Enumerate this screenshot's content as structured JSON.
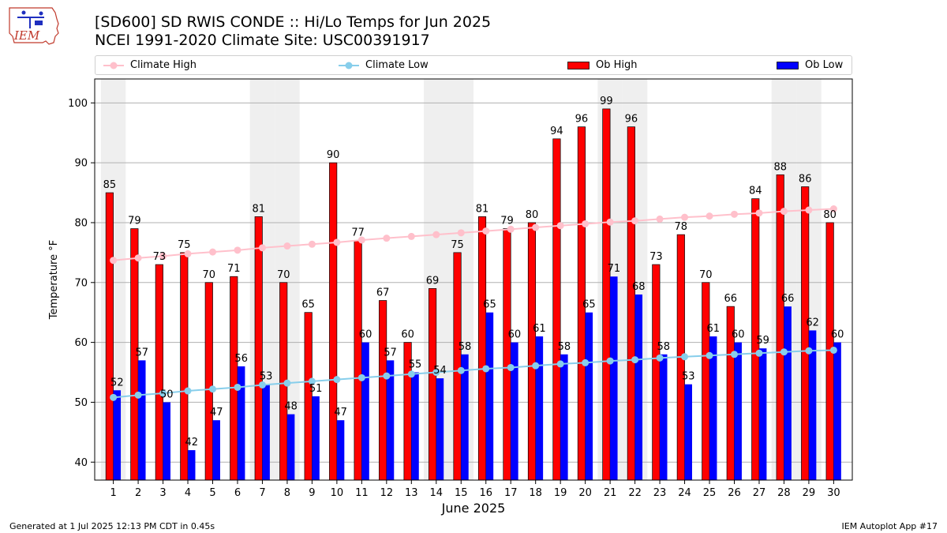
{
  "header": {
    "title_line1": "[SD600] SD RWIS CONDE :: Hi/Lo Temps for Jun 2025",
    "title_line2": "NCEI 1991-2020 Climate Site: USC00391917",
    "logo_text": "IEM"
  },
  "footer": {
    "left": "Generated at 1 Jul 2025 12:13 PM CDT in 0.45s",
    "right": "IEM Autoplot App #17"
  },
  "colors": {
    "ob_high": "#ff0000",
    "ob_low": "#0000ff",
    "climate_high": "#ffc0cb",
    "climate_low": "#87ceeb",
    "weekend_band": "#efefef",
    "grid": "#b0b0b0"
  },
  "chart_data": {
    "type": "bar",
    "xlabel": "June 2025",
    "ylabel": "Temperature °F",
    "ylim": [
      37,
      104
    ],
    "yticks": [
      40,
      50,
      60,
      70,
      80,
      90,
      100
    ],
    "grid": "y",
    "legend_position": "top",
    "categories": [
      "1",
      "2",
      "3",
      "4",
      "5",
      "6",
      "7",
      "8",
      "9",
      "10",
      "11",
      "12",
      "13",
      "14",
      "15",
      "16",
      "17",
      "18",
      "19",
      "20",
      "21",
      "22",
      "23",
      "24",
      "25",
      "26",
      "27",
      "28",
      "29",
      "30"
    ],
    "shaded_days": [
      1,
      7,
      8,
      14,
      15,
      21,
      22,
      28,
      29
    ],
    "series": [
      {
        "name": "Ob High",
        "kind": "bar",
        "values": [
          85,
          79,
          73,
          75,
          70,
          71,
          81,
          70,
          65,
          90,
          77,
          67,
          60,
          69,
          75,
          81,
          79,
          80,
          94,
          96,
          99,
          96,
          73,
          78,
          70,
          66,
          84,
          88,
          86,
          80
        ]
      },
      {
        "name": "Ob Low",
        "kind": "bar",
        "values": [
          52,
          57,
          50,
          42,
          47,
          56,
          53,
          48,
          51,
          47,
          60,
          57,
          55,
          54,
          58,
          65,
          60,
          61,
          58,
          65,
          71,
          68,
          58,
          53,
          61,
          60,
          59,
          66,
          62,
          60
        ]
      },
      {
        "name": "Climate High",
        "kind": "line",
        "values": [
          73.7,
          74.1,
          74.4,
          74.8,
          75.1,
          75.4,
          75.8,
          76.1,
          76.4,
          76.7,
          77.1,
          77.4,
          77.7,
          78.0,
          78.3,
          78.6,
          78.9,
          79.2,
          79.5,
          79.8,
          80.1,
          80.3,
          80.6,
          80.9,
          81.1,
          81.4,
          81.6,
          81.9,
          82.1,
          82.3
        ]
      },
      {
        "name": "Climate Low",
        "kind": "line",
        "values": [
          50.8,
          51.2,
          51.5,
          51.9,
          52.2,
          52.5,
          52.9,
          53.2,
          53.5,
          53.8,
          54.1,
          54.4,
          54.7,
          55.0,
          55.3,
          55.6,
          55.8,
          56.1,
          56.4,
          56.6,
          56.9,
          57.1,
          57.4,
          57.6,
          57.8,
          58.0,
          58.2,
          58.4,
          58.6,
          58.7
        ]
      }
    ]
  }
}
